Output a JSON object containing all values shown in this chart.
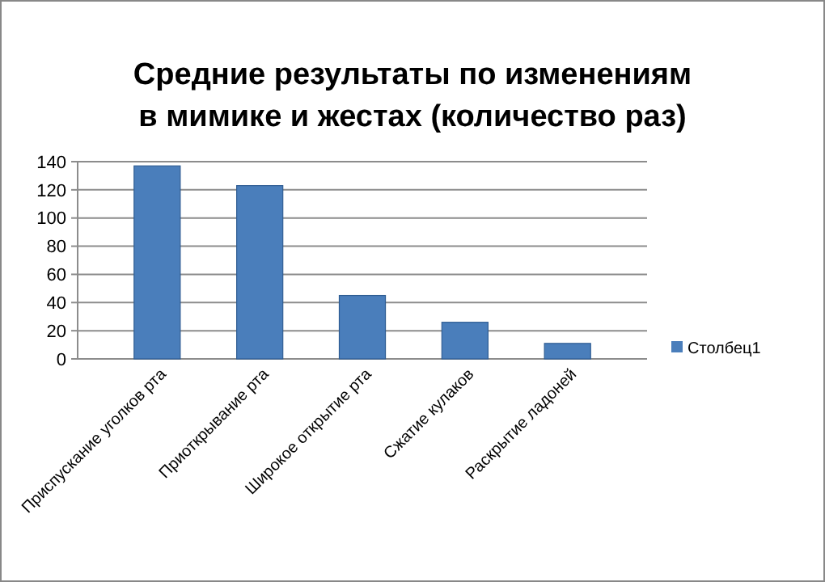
{
  "chart_data": {
    "type": "bar",
    "title": "Средние результаты по изменениям\nв мимике и жестах (количество раз)",
    "categories": [
      "Приспускание уголков рта",
      "Приоткрывание рта",
      "Широкое открытие рта",
      "Сжатие кулаков",
      "Раскрытие ладоней"
    ],
    "series": [
      {
        "name": "Столбец1",
        "color": "#4a7ebb",
        "values": [
          137,
          123,
          45,
          26,
          11
        ]
      }
    ],
    "ylim": [
      0,
      140
    ],
    "yticks": [
      0,
      20,
      40,
      60,
      80,
      100,
      120,
      140
    ],
    "grid": "y",
    "legend": "right"
  }
}
